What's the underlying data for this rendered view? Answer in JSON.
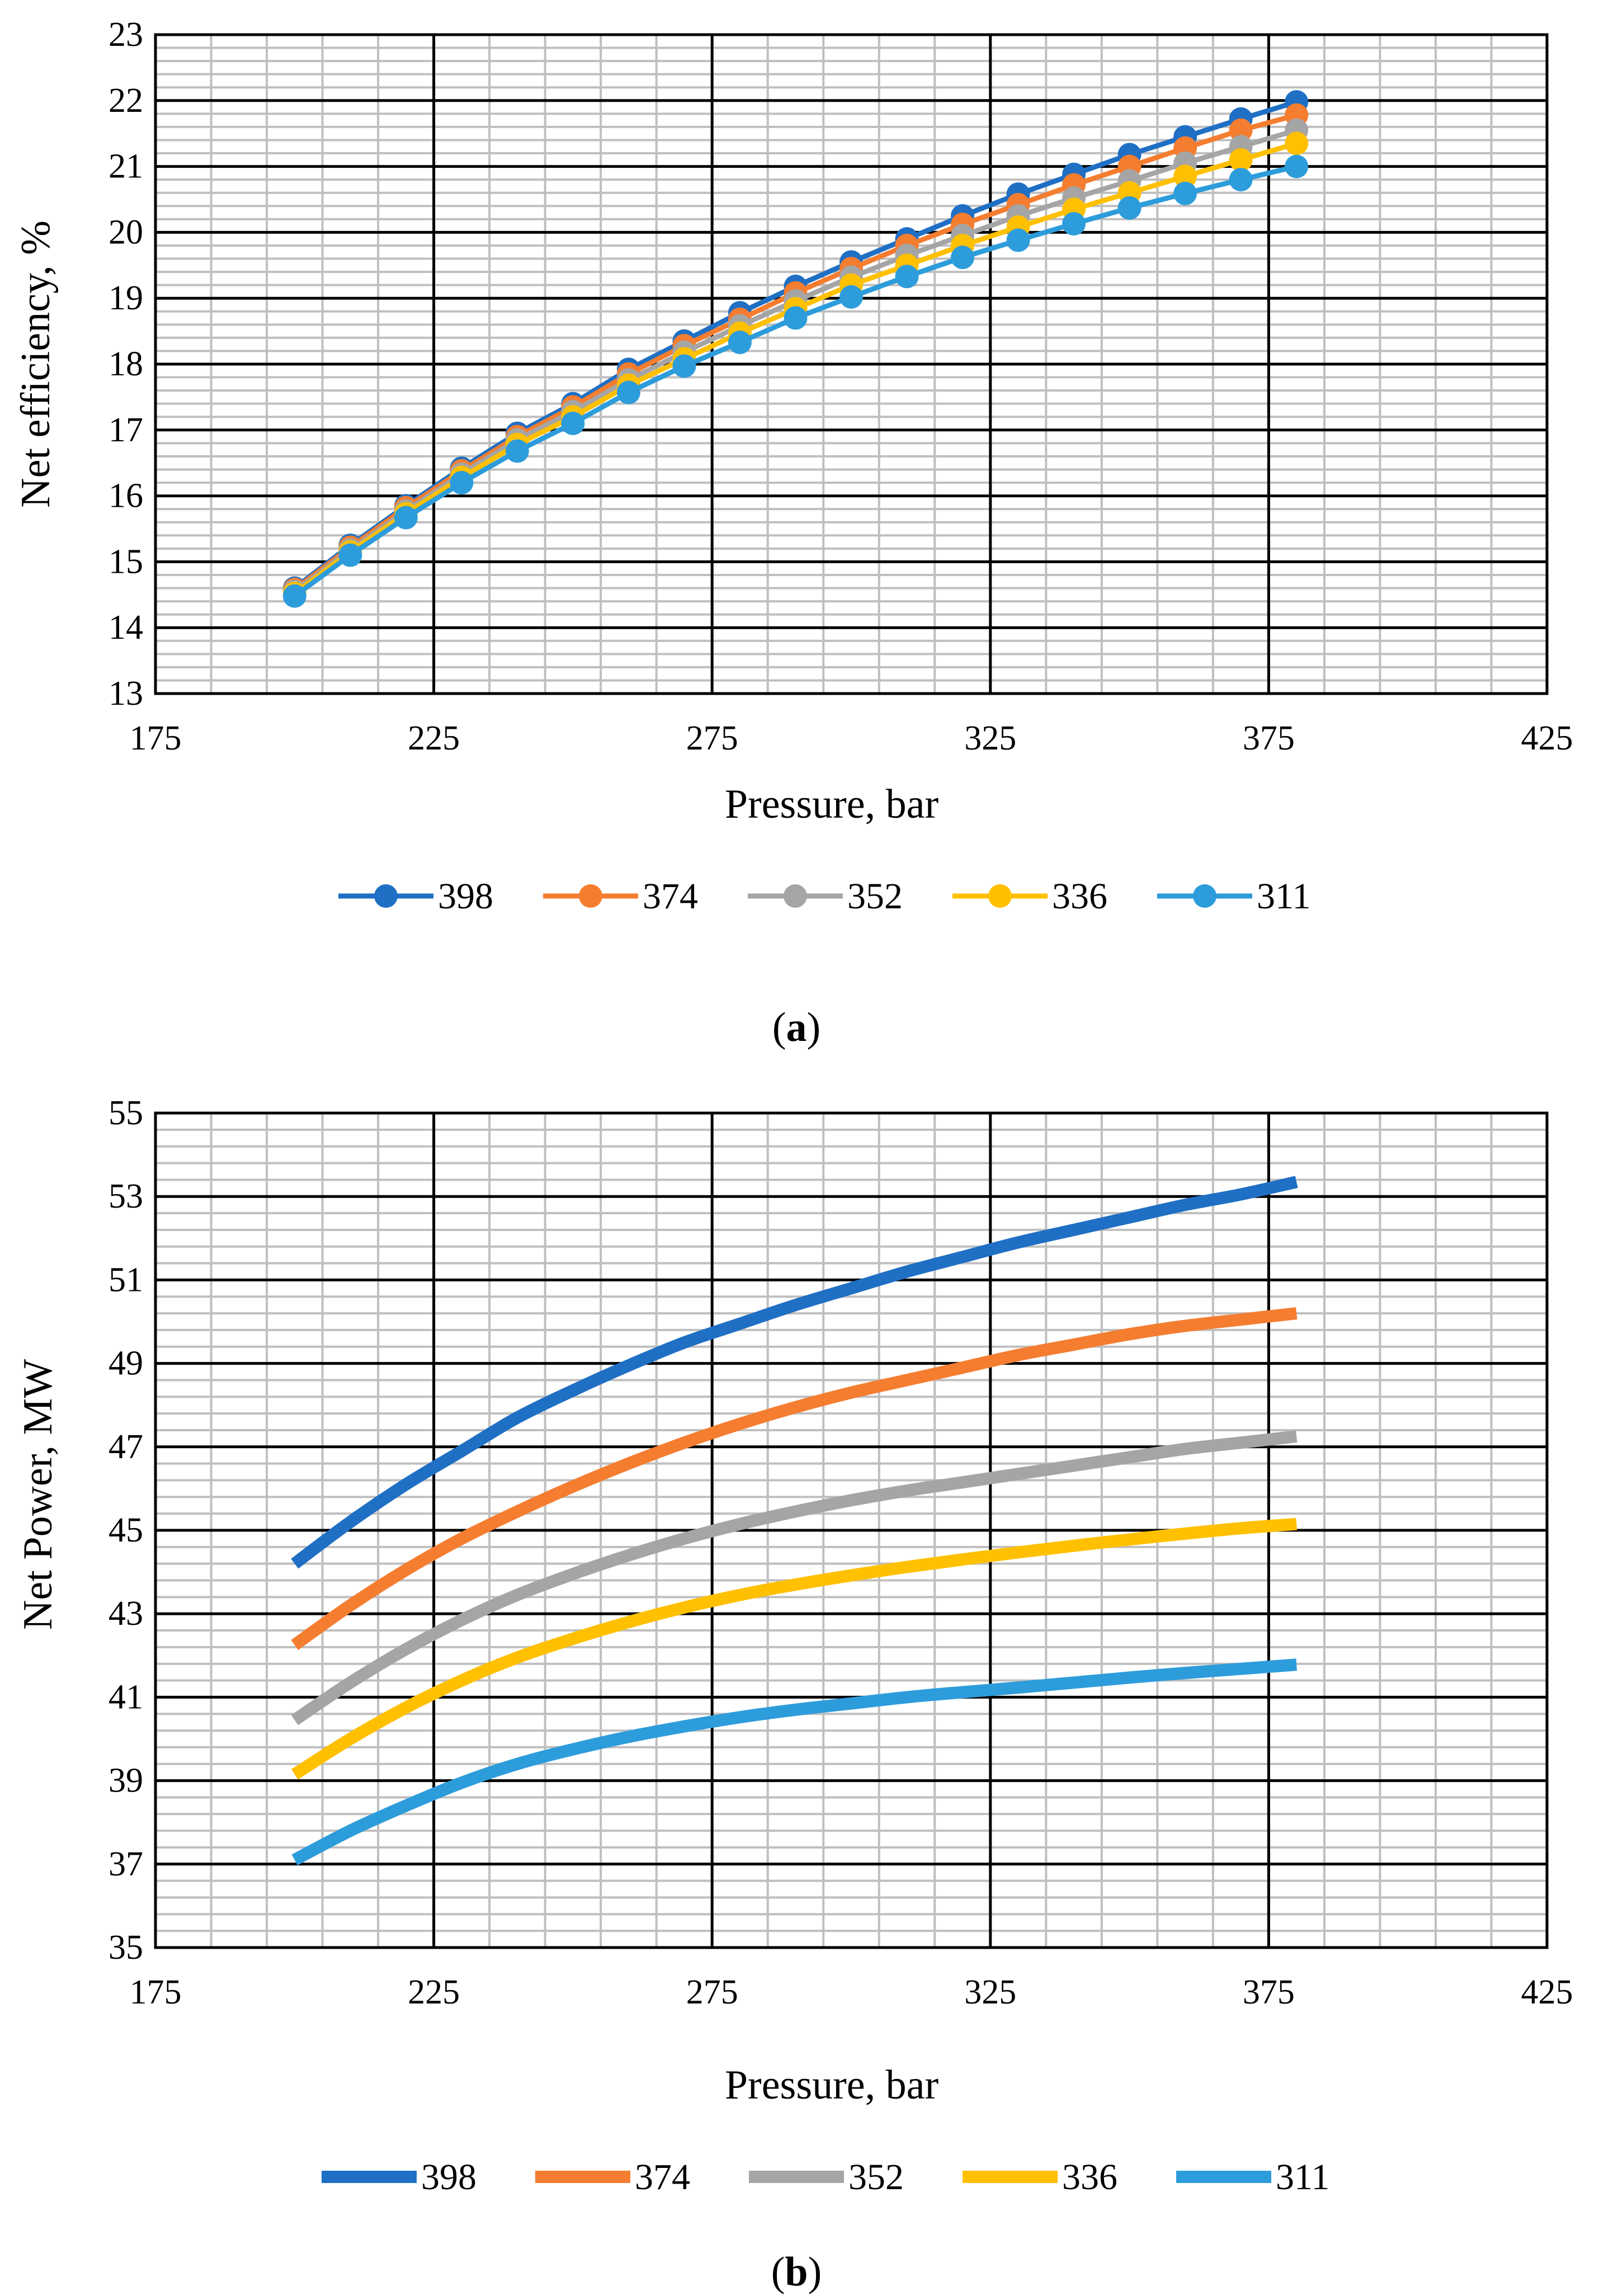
{
  "chart_data": [
    {
      "id": "a",
      "type": "line",
      "markers": true,
      "title": "",
      "xlabel": "Pressure, bar",
      "ylabel": "Net efficiency, %",
      "xlim": [
        175,
        425
      ],
      "ylim": [
        13,
        23
      ],
      "x_ticks": [
        175,
        225,
        275,
        325,
        375,
        425
      ],
      "y_ticks": [
        13,
        14,
        15,
        16,
        17,
        18,
        19,
        20,
        21,
        22,
        23
      ],
      "grid": "major and minor",
      "legend": "bottom",
      "x": [
        200,
        210,
        220,
        230,
        240,
        250,
        260,
        270,
        280,
        290,
        300,
        310,
        320,
        330,
        340,
        350,
        360,
        370,
        380
      ],
      "series": [
        {
          "name": "398",
          "color": "#1F6FC4",
          "values": [
            14.6,
            15.25,
            15.85,
            16.42,
            16.95,
            17.4,
            17.92,
            18.35,
            18.78,
            19.18,
            19.55,
            19.9,
            20.25,
            20.58,
            20.88,
            21.18,
            21.45,
            21.72,
            21.98
          ]
        },
        {
          "name": "374",
          "color": "#F47D30",
          "values": [
            14.58,
            15.22,
            15.82,
            16.38,
            16.9,
            17.35,
            17.85,
            18.28,
            18.68,
            19.08,
            19.45,
            19.8,
            20.12,
            20.42,
            20.72,
            21.0,
            21.28,
            21.55,
            21.78
          ]
        },
        {
          "name": "352",
          "color": "#A5A5A5",
          "values": [
            14.55,
            15.18,
            15.77,
            16.33,
            16.85,
            17.28,
            17.76,
            18.18,
            18.58,
            18.96,
            19.32,
            19.65,
            19.95,
            20.25,
            20.52,
            20.78,
            21.05,
            21.3,
            21.55
          ]
        },
        {
          "name": "336",
          "color": "#FFC000",
          "values": [
            14.52,
            15.15,
            15.73,
            16.28,
            16.78,
            17.2,
            17.68,
            18.08,
            18.47,
            18.84,
            19.2,
            19.5,
            19.8,
            20.08,
            20.35,
            20.6,
            20.85,
            21.1,
            21.35
          ]
        },
        {
          "name": "311",
          "color": "#2D9CDB",
          "values": [
            14.48,
            15.1,
            15.67,
            16.2,
            16.68,
            17.1,
            17.57,
            17.97,
            18.33,
            18.7,
            19.02,
            19.33,
            19.62,
            19.88,
            20.13,
            20.37,
            20.59,
            20.8,
            21.0
          ]
        }
      ]
    },
    {
      "id": "b",
      "type": "line",
      "markers": false,
      "title": "",
      "xlabel": "Pressure, bar",
      "ylabel": "Net Power, MW",
      "xlim": [
        175,
        425
      ],
      "ylim": [
        35,
        55
      ],
      "x_ticks": [
        175,
        225,
        275,
        325,
        375,
        425
      ],
      "y_ticks": [
        35,
        37,
        39,
        41,
        43,
        45,
        47,
        49,
        51,
        53,
        55
      ],
      "grid": "major and minor",
      "legend": "bottom",
      "x": [
        200,
        210,
        220,
        230,
        240,
        250,
        260,
        270,
        280,
        290,
        300,
        310,
        320,
        330,
        340,
        350,
        360,
        370,
        380
      ],
      "series": [
        {
          "name": "398",
          "color": "#1F6FC4",
          "values": [
            44.2,
            45.2,
            46.1,
            46.9,
            47.7,
            48.35,
            48.95,
            49.5,
            49.95,
            50.4,
            50.8,
            51.2,
            51.55,
            51.9,
            52.2,
            52.5,
            52.8,
            53.05,
            53.35
          ]
        },
        {
          "name": "374",
          "color": "#F47D30",
          "values": [
            42.25,
            43.2,
            44.05,
            44.8,
            45.45,
            46.05,
            46.6,
            47.1,
            47.55,
            47.95,
            48.3,
            48.6,
            48.9,
            49.2,
            49.45,
            49.7,
            49.9,
            50.05,
            50.2
          ]
        },
        {
          "name": "352",
          "color": "#A5A5A5",
          "values": [
            40.45,
            41.35,
            42.15,
            42.85,
            43.45,
            43.95,
            44.4,
            44.8,
            45.15,
            45.45,
            45.72,
            45.95,
            46.15,
            46.35,
            46.55,
            46.75,
            46.95,
            47.1,
            47.25
          ]
        },
        {
          "name": "336",
          "color": "#FFC000",
          "values": [
            39.15,
            40.0,
            40.75,
            41.4,
            41.95,
            42.4,
            42.8,
            43.15,
            43.45,
            43.7,
            43.92,
            44.12,
            44.3,
            44.47,
            44.63,
            44.78,
            44.92,
            45.05,
            45.15
          ]
        },
        {
          "name": "311",
          "color": "#2D9CDB",
          "values": [
            37.1,
            37.8,
            38.4,
            38.95,
            39.4,
            39.75,
            40.05,
            40.3,
            40.52,
            40.7,
            40.85,
            41.0,
            41.12,
            41.23,
            41.35,
            41.47,
            41.58,
            41.68,
            41.78
          ]
        }
      ]
    }
  ],
  "captions": {
    "a": "a",
    "b": "b"
  }
}
